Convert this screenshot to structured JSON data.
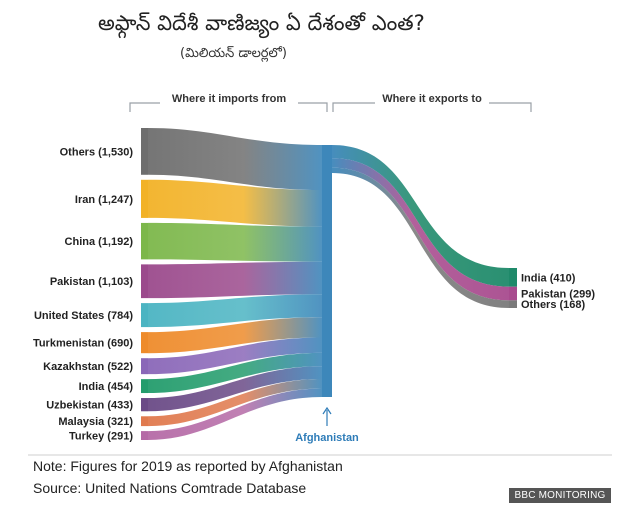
{
  "title": "అఫ్గాన్ విదేశీ వాణిజ్యం ఏ దేశంతో ఎంత?",
  "subtitle": "(మిలియన్ డాలర్లలో)",
  "sections": {
    "imports": "Where it imports from",
    "exports": "Where it exports to"
  },
  "note": "Note: Figures for 2019 as reported by Afghanistan",
  "source": "Source: United Nations Comtrade Database",
  "badge": "BBC MONITORING",
  "chart_data": {
    "type": "sankey",
    "hub": "Afghanistan",
    "imports": [
      {
        "label": "Others (1,530)",
        "value": 1530,
        "color": "#6e6e6e"
      },
      {
        "label": "Iran (1,247)",
        "value": 1247,
        "color": "#f2b227"
      },
      {
        "label": "China (1,192)",
        "value": 1192,
        "color": "#7cb74a"
      },
      {
        "label": "Pakistan (1,103)",
        "value": 1103,
        "color": "#9b4a8c"
      },
      {
        "label": "United States (784)",
        "value": 784,
        "color": "#4bb4c2"
      },
      {
        "label": "Turkmenistan (690)",
        "value": 690,
        "color": "#ee8b2b"
      },
      {
        "label": "Kazakhstan (522)",
        "value": 522,
        "color": "#8a67b8"
      },
      {
        "label": "India (454)",
        "value": 454,
        "color": "#239c6c"
      },
      {
        "label": "Uzbekistan (433)",
        "value": 433,
        "color": "#6a4a86"
      },
      {
        "label": "Malaysia (321)",
        "value": 321,
        "color": "#e07a4e"
      },
      {
        "label": "Turkey (291)",
        "value": 291,
        "color": "#b56aa6"
      }
    ],
    "exports": [
      {
        "label": "India (410)",
        "value": 410,
        "color": "#1f8a6a"
      },
      {
        "label": "Pakistan (299)",
        "value": 299,
        "color": "#a84b8e"
      },
      {
        "label": "Others (168)",
        "value": 168,
        "color": "#7a7a7a"
      }
    ],
    "hub_color": "#3d87ba"
  }
}
